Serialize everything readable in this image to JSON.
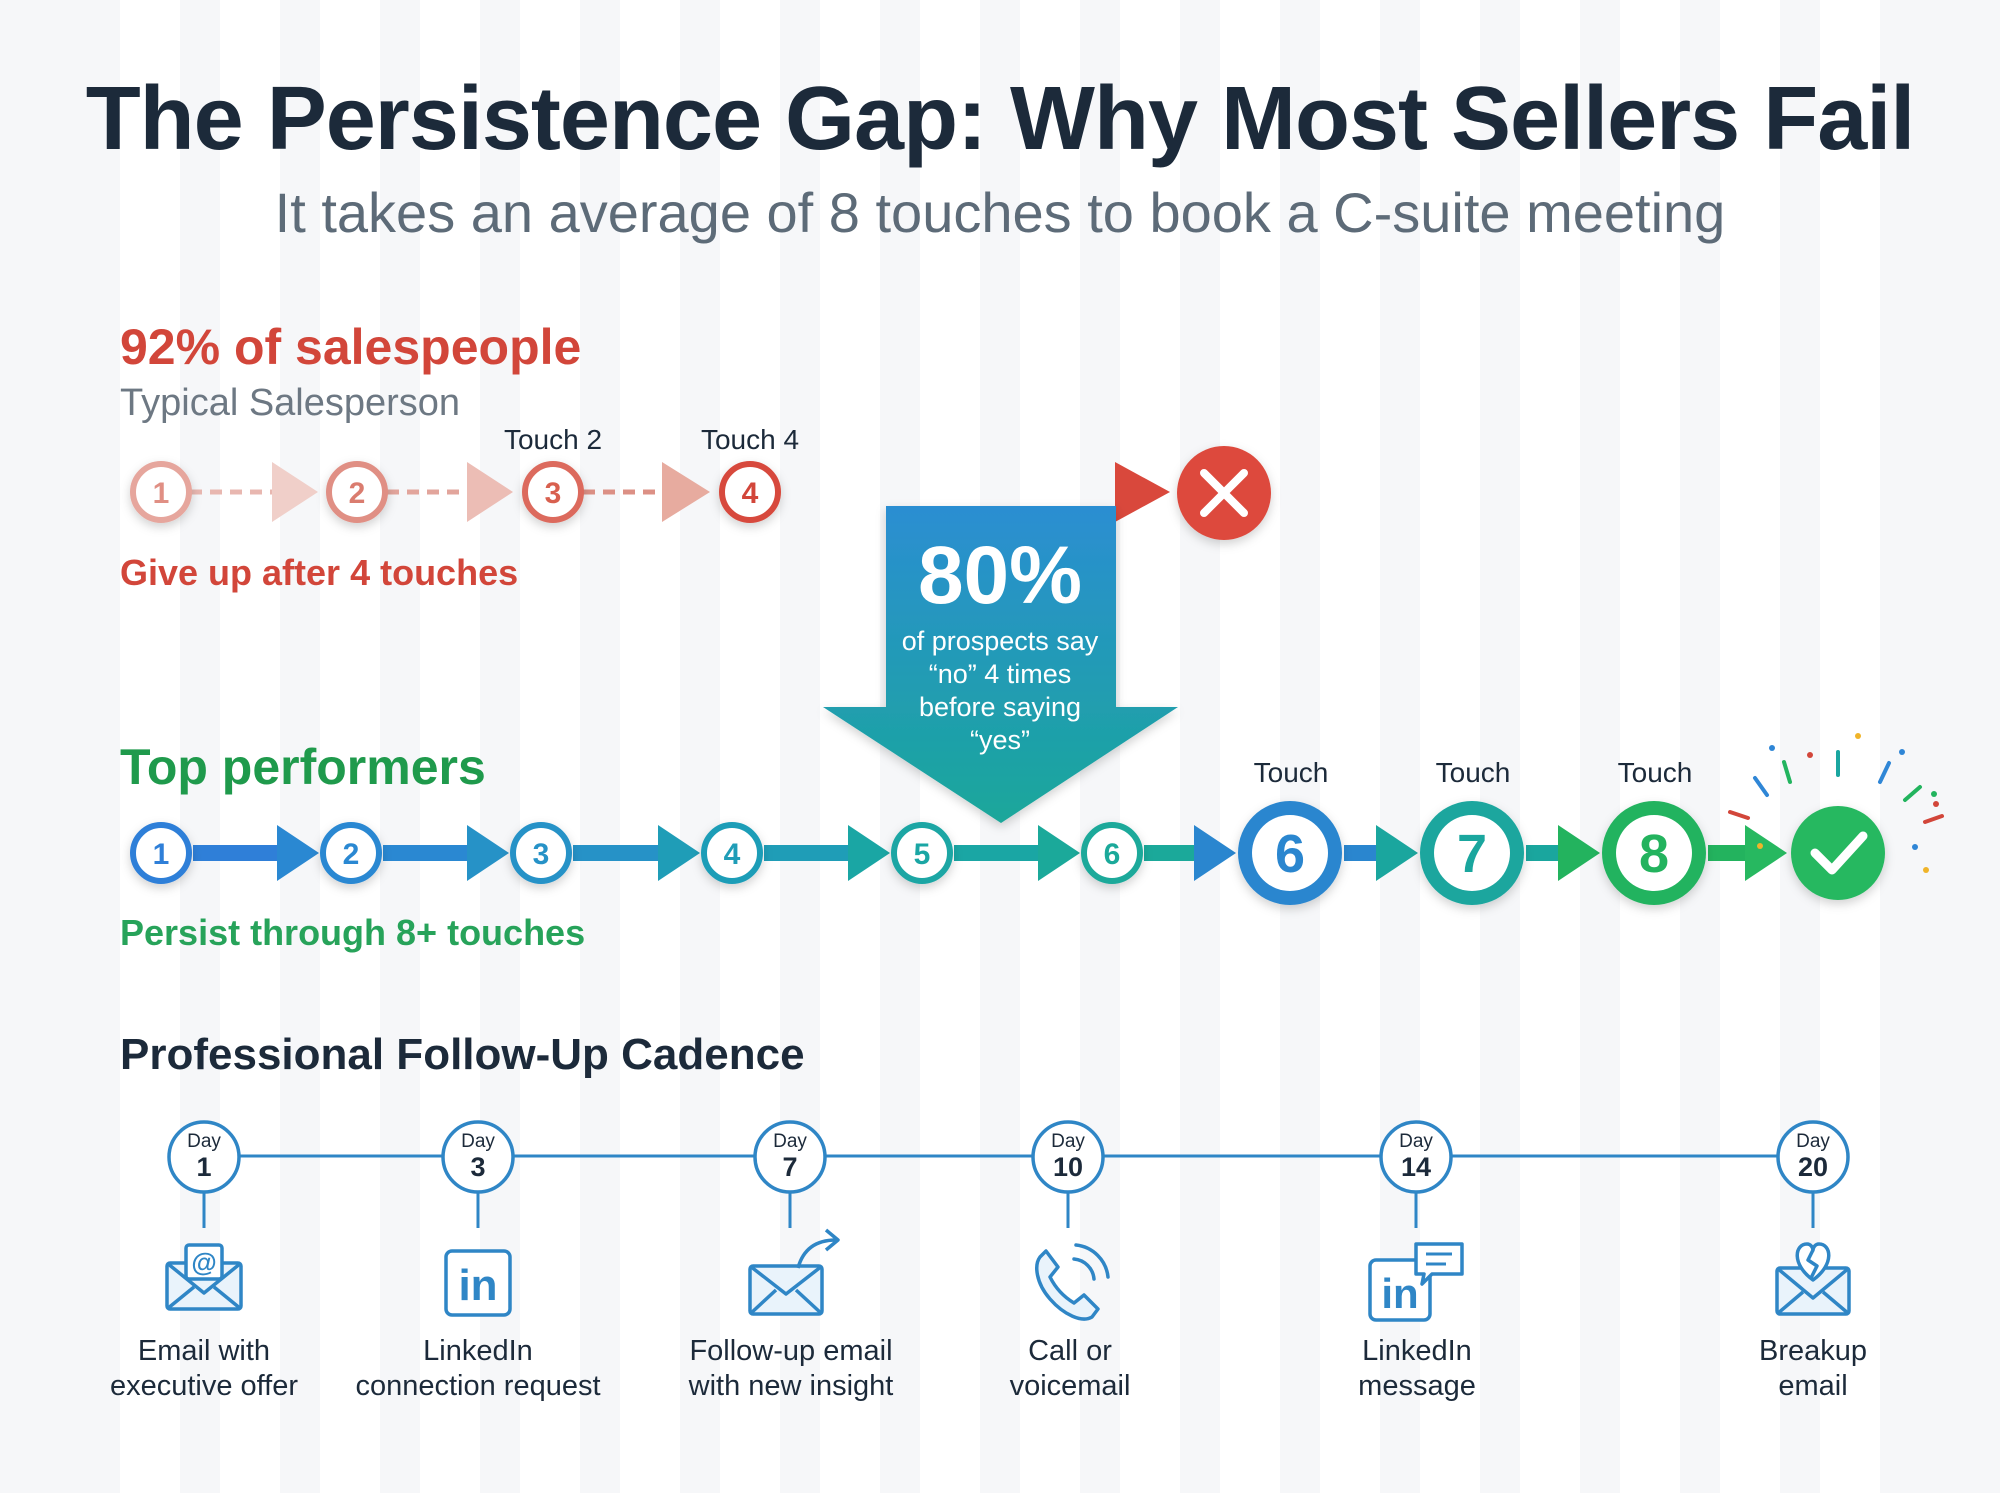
{
  "header": {
    "title": "The Persistence Gap: Why Most Sellers Fail",
    "subtitle": "It takes an average of 8 touches to book a C-suite meeting"
  },
  "typical": {
    "heading": "92% of salespeople",
    "subheading": "Typical Salesperson",
    "note": "Give up after 4 touches",
    "touches": [
      "1",
      "2",
      "3",
      "4"
    ],
    "touch_labels": [
      "Touch 2",
      "Touch 4"
    ],
    "outcome_icon": "x-icon",
    "color": "#d2463a"
  },
  "callout": {
    "stat": "80%",
    "text": [
      "of prospects say",
      "“no” 4 times",
      "before saying",
      "“yes”"
    ]
  },
  "top": {
    "heading": "Top performers",
    "note": "Persist through 8+ touches",
    "small_touches": [
      "1",
      "2",
      "3",
      "4",
      "5",
      "6"
    ],
    "big_touches": [
      "6",
      "7",
      "8"
    ],
    "touch_labels": [
      "Touch",
      "Touch",
      "Touch"
    ],
    "outcome_icon": "check-icon",
    "colors": {
      "blue": "#2f86d6",
      "teal": "#1aa6a0",
      "green": "#22b45e"
    }
  },
  "cadence": {
    "heading": "Professional Follow-Up Cadence",
    "day_word": "Day",
    "steps": [
      {
        "day": "1",
        "line1": "Email with",
        "line2": "executive offer",
        "icon": "email-at-icon"
      },
      {
        "day": "3",
        "line1": "LinkedIn",
        "line2": "connection request",
        "icon": "linkedin-icon"
      },
      {
        "day": "7",
        "line1": "Follow-up email",
        "line2": "with new insight",
        "icon": "email-forward-icon"
      },
      {
        "day": "10",
        "line1": "Call or",
        "line2": "voicemail",
        "icon": "phone-icon"
      },
      {
        "day": "14",
        "line1": "LinkedIn",
        "line2": "message",
        "icon": "linkedin-message-icon"
      },
      {
        "day": "20",
        "line1": "Breakup",
        "line2": "email",
        "icon": "broken-heart-email-icon"
      }
    ],
    "color": "#2f86c6"
  }
}
